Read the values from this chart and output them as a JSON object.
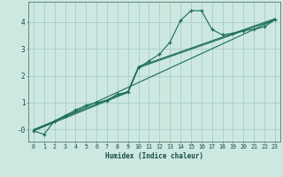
{
  "title": "",
  "xlabel": "Humidex (Indice chaleur)",
  "bg_color": "#cce8e0",
  "grid_color": "#aacccc",
  "line_color": "#1a6b5a",
  "xlim": [
    -0.5,
    23.5
  ],
  "ylim": [
    -0.45,
    4.75
  ],
  "xticks": [
    0,
    1,
    2,
    3,
    4,
    5,
    6,
    7,
    8,
    9,
    10,
    11,
    12,
    13,
    14,
    15,
    16,
    17,
    18,
    19,
    20,
    21,
    22,
    23
  ],
  "yticks": [
    0,
    1,
    2,
    3,
    4
  ],
  "ytick_labels": [
    "-0",
    "1",
    "2",
    "3",
    "4"
  ],
  "series1_x": [
    0,
    1,
    2,
    3,
    4,
    5,
    6,
    7,
    8,
    9,
    10,
    11,
    12,
    13,
    14,
    15,
    16,
    17,
    18,
    19,
    20,
    21,
    22,
    23
  ],
  "series1_y": [
    -0.05,
    -0.18,
    0.32,
    0.52,
    0.72,
    0.9,
    1.0,
    1.08,
    1.32,
    1.38,
    2.3,
    2.55,
    2.8,
    3.25,
    4.05,
    4.42,
    4.42,
    3.72,
    3.52,
    3.58,
    3.68,
    3.72,
    3.82,
    4.08
  ],
  "series2_x": [
    0,
    23
  ],
  "series2_y": [
    -0.05,
    4.08
  ],
  "series3_x": [
    0,
    9,
    10,
    23
  ],
  "series3_y": [
    -0.05,
    1.38,
    2.3,
    4.08
  ],
  "series4_x": [
    0,
    9,
    10,
    23
  ],
  "series4_y": [
    0.0,
    1.42,
    2.34,
    4.12
  ]
}
